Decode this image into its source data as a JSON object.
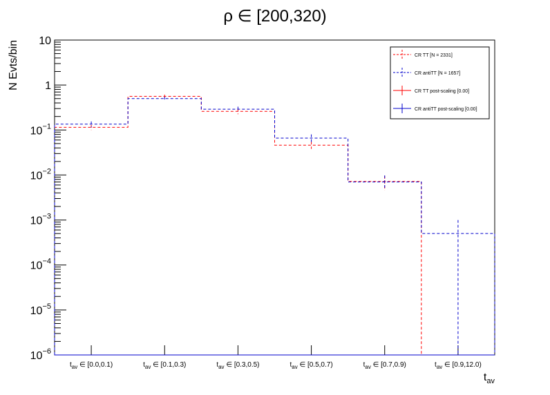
{
  "chart_data": {
    "type": "step-histogram",
    "title": "ρ ∈ [200,320)",
    "xlabel": {
      "main": "t",
      "sub": "av"
    },
    "ylabel": "N Evts/bin",
    "yscale": "log",
    "ylim": [
      1e-06,
      10
    ],
    "y_tick_labels": [
      {
        "base": "10",
        "exp": "−6",
        "value": 1e-06
      },
      {
        "base": "10",
        "exp": "−5",
        "value": 1e-05
      },
      {
        "base": "10",
        "exp": "−4",
        "value": 0.0001
      },
      {
        "base": "10",
        "exp": "−3",
        "value": 0.001
      },
      {
        "base": "10",
        "exp": "−2",
        "value": 0.01
      },
      {
        "base": "10",
        "exp": "−1",
        "value": 0.1
      },
      {
        "base": "1",
        "exp": "",
        "value": 1
      },
      {
        "base": "10",
        "exp": "",
        "value": 10
      }
    ],
    "categories": [
      {
        "pre": "t",
        "sub": "av",
        "post": " ∈ [0.0,0.1)"
      },
      {
        "pre": "t",
        "sub": "av",
        "post": " ∈ [0.1,0.3)"
      },
      {
        "pre": "t",
        "sub": "av",
        "post": " ∈ [0.3,0.5)"
      },
      {
        "pre": "t",
        "sub": "av",
        "post": " ∈ [0.5,0.7)"
      },
      {
        "pre": "t",
        "sub": "av",
        "post": " ∈ [0.7,0.9)"
      },
      {
        "pre": "t",
        "sub": "av",
        "post": " ∈ [0.9,12.0)"
      }
    ],
    "series": [
      {
        "name": "CR TT [N = 2331]",
        "color": "#ff0000",
        "style": "dashed",
        "values": [
          0.115,
          0.56,
          0.26,
          0.046,
          0.0072,
          1e-06
        ],
        "err_lo": [
          0.1,
          0.51,
          0.225,
          0.038,
          0.0045,
          null
        ],
        "err_hi": [
          0.13,
          0.61,
          0.3,
          0.055,
          0.0095,
          null
        ]
      },
      {
        "name": "CR antiTT [N = 1657]",
        "color": "#0000cc",
        "style": "dashed",
        "values": [
          0.135,
          0.5,
          0.29,
          0.066,
          0.007,
          0.0005
        ],
        "err_lo": [
          0.115,
          0.46,
          0.255,
          0.052,
          0.0048,
          1e-06
        ],
        "err_hi": [
          0.155,
          0.55,
          0.33,
          0.08,
          0.0098,
          0.001
        ]
      },
      {
        "name": "CR TT post-scaling [0.00]",
        "color": "#ff0000",
        "style": "solid",
        "values": [
          1e-06,
          1e-06,
          1e-06,
          1e-06,
          1e-06,
          1e-06
        ]
      },
      {
        "name": "CR antiTT post-scaling [0.00]",
        "color": "#0000cc",
        "style": "solid",
        "values": [
          1e-06,
          1e-06,
          1e-06,
          1e-06,
          1e-06,
          1e-06
        ]
      }
    ],
    "legend_position": "top-right",
    "grid": false
  }
}
